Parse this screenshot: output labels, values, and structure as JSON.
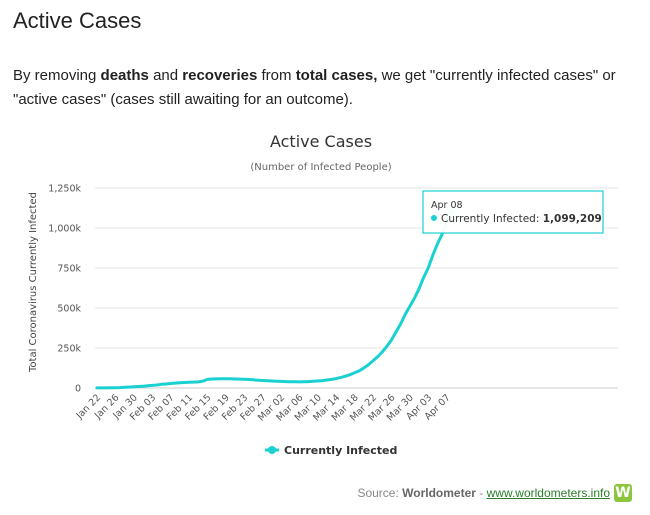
{
  "page": {
    "title": "Active Cases",
    "intro": {
      "t1": "By removing ",
      "b1": "deaths",
      "t2": " and ",
      "b2": "recoveries",
      "t3": " from ",
      "b3": "total cases,",
      "t4": " we get \"currently infected cases\" or \"active cases\" (cases still awaiting for an outcome)."
    }
  },
  "chart_data": {
    "type": "line",
    "title": "Active Cases",
    "subtitle": "(Number of Infected People)",
    "ylabel": "Total Coronavirus Currently Infected",
    "xlabel": "",
    "ylim": [
      0,
      1250000
    ],
    "yticks": [
      0,
      250000,
      500000,
      750000,
      1000000,
      1250000
    ],
    "ytick_labels": [
      "0",
      "250k",
      "500k",
      "750k",
      "1,000k",
      "1,250k"
    ],
    "xtick_labels": [
      "Jan 22",
      "Jan 26",
      "Jan 30",
      "Feb 03",
      "Feb 07",
      "Feb 11",
      "Feb 15",
      "Feb 19",
      "Feb 23",
      "Feb 27",
      "Mar 02",
      "Mar 06",
      "Mar 10",
      "Mar 14",
      "Mar 18",
      "Mar 22",
      "Mar 26",
      "Mar 30",
      "Apr 03",
      "Apr 07"
    ],
    "grid": true,
    "legend_position": "bottom",
    "color": "#1ad1d1",
    "series": [
      {
        "name": "Currently Infected",
        "x": [
          "Jan 22",
          "Jan 23",
          "Jan 24",
          "Jan 25",
          "Jan 26",
          "Jan 27",
          "Jan 28",
          "Jan 29",
          "Jan 30",
          "Jan 31",
          "Feb 01",
          "Feb 02",
          "Feb 03",
          "Feb 04",
          "Feb 05",
          "Feb 06",
          "Feb 07",
          "Feb 08",
          "Feb 09",
          "Feb 10",
          "Feb 11",
          "Feb 12",
          "Feb 13",
          "Feb 14",
          "Feb 15",
          "Feb 16",
          "Feb 17",
          "Feb 18",
          "Feb 19",
          "Feb 20",
          "Feb 21",
          "Feb 22",
          "Feb 23",
          "Feb 24",
          "Feb 25",
          "Feb 26",
          "Feb 27",
          "Feb 28",
          "Feb 29",
          "Mar 01",
          "Mar 02",
          "Mar 03",
          "Mar 04",
          "Mar 05",
          "Mar 06",
          "Mar 07",
          "Mar 08",
          "Mar 09",
          "Mar 10",
          "Mar 11",
          "Mar 12",
          "Mar 13",
          "Mar 14",
          "Mar 15",
          "Mar 16",
          "Mar 17",
          "Mar 18",
          "Mar 19",
          "Mar 20",
          "Mar 21",
          "Mar 22",
          "Mar 23",
          "Mar 24",
          "Mar 25",
          "Mar 26",
          "Mar 27",
          "Mar 28",
          "Mar 29",
          "Mar 30",
          "Mar 31",
          "Apr 01",
          "Apr 02",
          "Apr 03",
          "Apr 04",
          "Apr 05",
          "Apr 06",
          "Apr 07",
          "Apr 08"
        ],
        "values": [
          500,
          600,
          850,
          1300,
          2000,
          2800,
          5000,
          5800,
          7500,
          9500,
          11000,
          14000,
          16000,
          19000,
          23000,
          25000,
          28000,
          30500,
          32500,
          34500,
          35500,
          37000,
          38000,
          43000,
          54000,
          56000,
          57000,
          57500,
          57800,
          57500,
          56500,
          55500,
          54500,
          53000,
          51500,
          49000,
          47000,
          45500,
          44000,
          42500,
          41000,
          40000,
          39000,
          38500,
          38000,
          38500,
          40000,
          42000,
          44000,
          46500,
          50000,
          54000,
          59000,
          66000,
          74000,
          83000,
          95000,
          107000,
          125000,
          145000,
          170000,
          195000,
          225000,
          260000,
          300000,
          350000,
          400000,
          460000,
          510000,
          560000,
          620000,
          690000,
          750000,
          830000,
          900000,
          960000,
          1030000,
          1099209
        ]
      }
    ],
    "tooltip": {
      "date": "Apr 08",
      "series_label": "Currently Infected: ",
      "value_label": "1,099,209"
    }
  },
  "source": {
    "label": "Source:",
    "name": "Worldometer",
    "sep": "-",
    "link": "www.worldometers.info",
    "logo_letter": "W"
  }
}
